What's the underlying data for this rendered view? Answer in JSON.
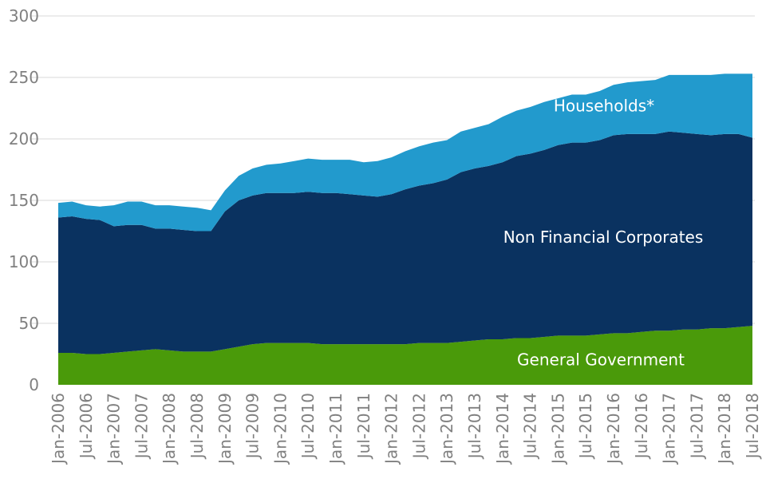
{
  "chart_data": {
    "type": "area",
    "stacked": true,
    "title": "",
    "xlabel": "",
    "ylabel": "",
    "ylim": [
      0,
      300
    ],
    "yticks": [
      0,
      50,
      100,
      150,
      200,
      250,
      300
    ],
    "grid": true,
    "legend": "none",
    "x": [
      "Jan-2006",
      "Apr-2006",
      "Jul-2006",
      "Oct-2006",
      "Jan-2007",
      "Apr-2007",
      "Jul-2007",
      "Oct-2007",
      "Jan-2008",
      "Apr-2008",
      "Jul-2008",
      "Oct-2008",
      "Jan-2009",
      "Apr-2009",
      "Jul-2009",
      "Oct-2009",
      "Jan-2010",
      "Apr-2010",
      "Jul-2010",
      "Oct-2010",
      "Jan-2011",
      "Apr-2011",
      "Jul-2011",
      "Oct-2011",
      "Jan-2012",
      "Apr-2012",
      "Jul-2012",
      "Oct-2012",
      "Jan-2013",
      "Apr-2013",
      "Jul-2013",
      "Oct-2013",
      "Jan-2014",
      "Apr-2014",
      "Jul-2014",
      "Oct-2014",
      "Jan-2015",
      "Apr-2015",
      "Jul-2015",
      "Oct-2015",
      "Jan-2016",
      "Apr-2016",
      "Jul-2016",
      "Oct-2016",
      "Jan-2017",
      "Apr-2017",
      "Jul-2017",
      "Oct-2017",
      "Jan-2018",
      "Apr-2018",
      "Jul-2018"
    ],
    "x_tick_labels": [
      "Jan-2006",
      "Jul-2006",
      "Jan-2007",
      "Jul-2007",
      "Jan-2008",
      "Jul-2008",
      "Jan-2009",
      "Jul-2009",
      "Jan-2010",
      "Jul-2010",
      "Jan-2011",
      "Jul-2011",
      "Jan-2012",
      "Jul-2012",
      "Jan-2013",
      "Jul-2013",
      "Jan-2014",
      "Jul-2014",
      "Jan-2015",
      "Jul-2015",
      "Jan-2016",
      "Jul-2016",
      "Jan-2017",
      "Jul-2017",
      "Jan-2018",
      "Jul-2018"
    ],
    "series": [
      {
        "name": "General Government",
        "color": "#4a9a0a",
        "values": [
          26,
          26,
          25,
          25,
          26,
          27,
          28,
          29,
          28,
          27,
          27,
          27,
          29,
          31,
          33,
          34,
          34,
          34,
          34,
          33,
          33,
          33,
          33,
          33,
          33,
          33,
          34,
          34,
          34,
          35,
          36,
          37,
          37,
          38,
          38,
          39,
          40,
          40,
          40,
          41,
          42,
          42,
          43,
          44,
          44,
          45,
          45,
          46,
          46,
          47,
          48
        ]
      },
      {
        "name": "Non Financial Corporates",
        "color": "#0a3260",
        "values": [
          110,
          111,
          110,
          109,
          103,
          103,
          102,
          98,
          99,
          99,
          98,
          98,
          112,
          119,
          121,
          122,
          122,
          122,
          123,
          123,
          123,
          122,
          121,
          120,
          122,
          126,
          128,
          130,
          133,
          138,
          140,
          141,
          144,
          148,
          150,
          152,
          155,
          157,
          157,
          158,
          161,
          162,
          161,
          160,
          162,
          160,
          159,
          157,
          158,
          157,
          153
        ]
      },
      {
        "name": "Households*",
        "color": "#229acd",
        "values": [
          12,
          12,
          11,
          11,
          17,
          19,
          19,
          19,
          19,
          19,
          19,
          17,
          17,
          20,
          22,
          23,
          24,
          26,
          27,
          27,
          27,
          28,
          27,
          29,
          30,
          31,
          32,
          33,
          32,
          33,
          33,
          34,
          37,
          37,
          38,
          39,
          38,
          39,
          39,
          40,
          41,
          42,
          43,
          44,
          46,
          47,
          48,
          49,
          49,
          49,
          52
        ]
      }
    ]
  }
}
